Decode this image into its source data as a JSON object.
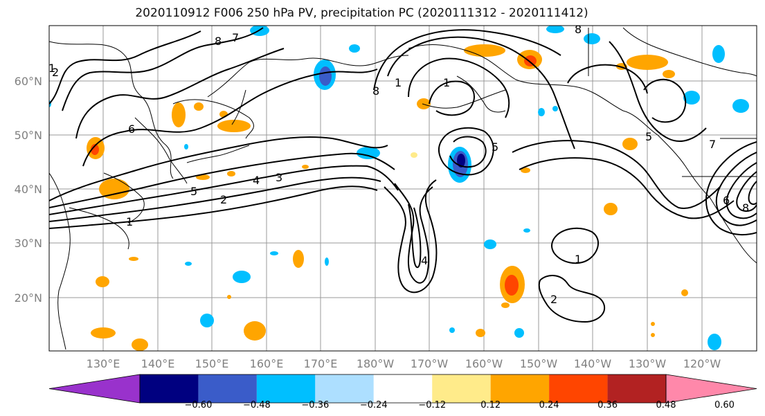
{
  "title": "2020110912 F006 250 hPa PV, precipitation PC (2020111312 - 2020111412)",
  "lat_labels": [
    "60°N",
    "50°N",
    "40°N",
    "30°N",
    "20°N"
  ],
  "lon_labels": [
    "130°E",
    "140°E",
    "150°E",
    "160°E",
    "170°E",
    "180°W",
    "170°W",
    "160°W",
    "150°W",
    "140°W",
    "130°W",
    "120°W"
  ],
  "colorbar": {
    "colors": [
      "#9932CC",
      "#000080",
      "#3A5CC9",
      "#00BFFF",
      "#ADDFFF",
      "#FFFFFF",
      "#FFEB8A",
      "#FFA500",
      "#FF4500",
      "#B22222",
      "#FF88AA"
    ],
    "tick_labels": [
      "−0.60",
      "−0.48",
      "−0.36",
      "−0.24",
      "−0.12",
      "0.12",
      "0.24",
      "0.36",
      "0.48",
      "0.60"
    ]
  },
  "contour_labels": [
    "8",
    "7",
    "6",
    "5",
    "4",
    "3",
    "2",
    "1",
    "8",
    "1",
    "2",
    "1",
    "8",
    "5",
    "7",
    "6",
    "8",
    "1",
    "4",
    "5",
    "1",
    "2"
  ]
}
